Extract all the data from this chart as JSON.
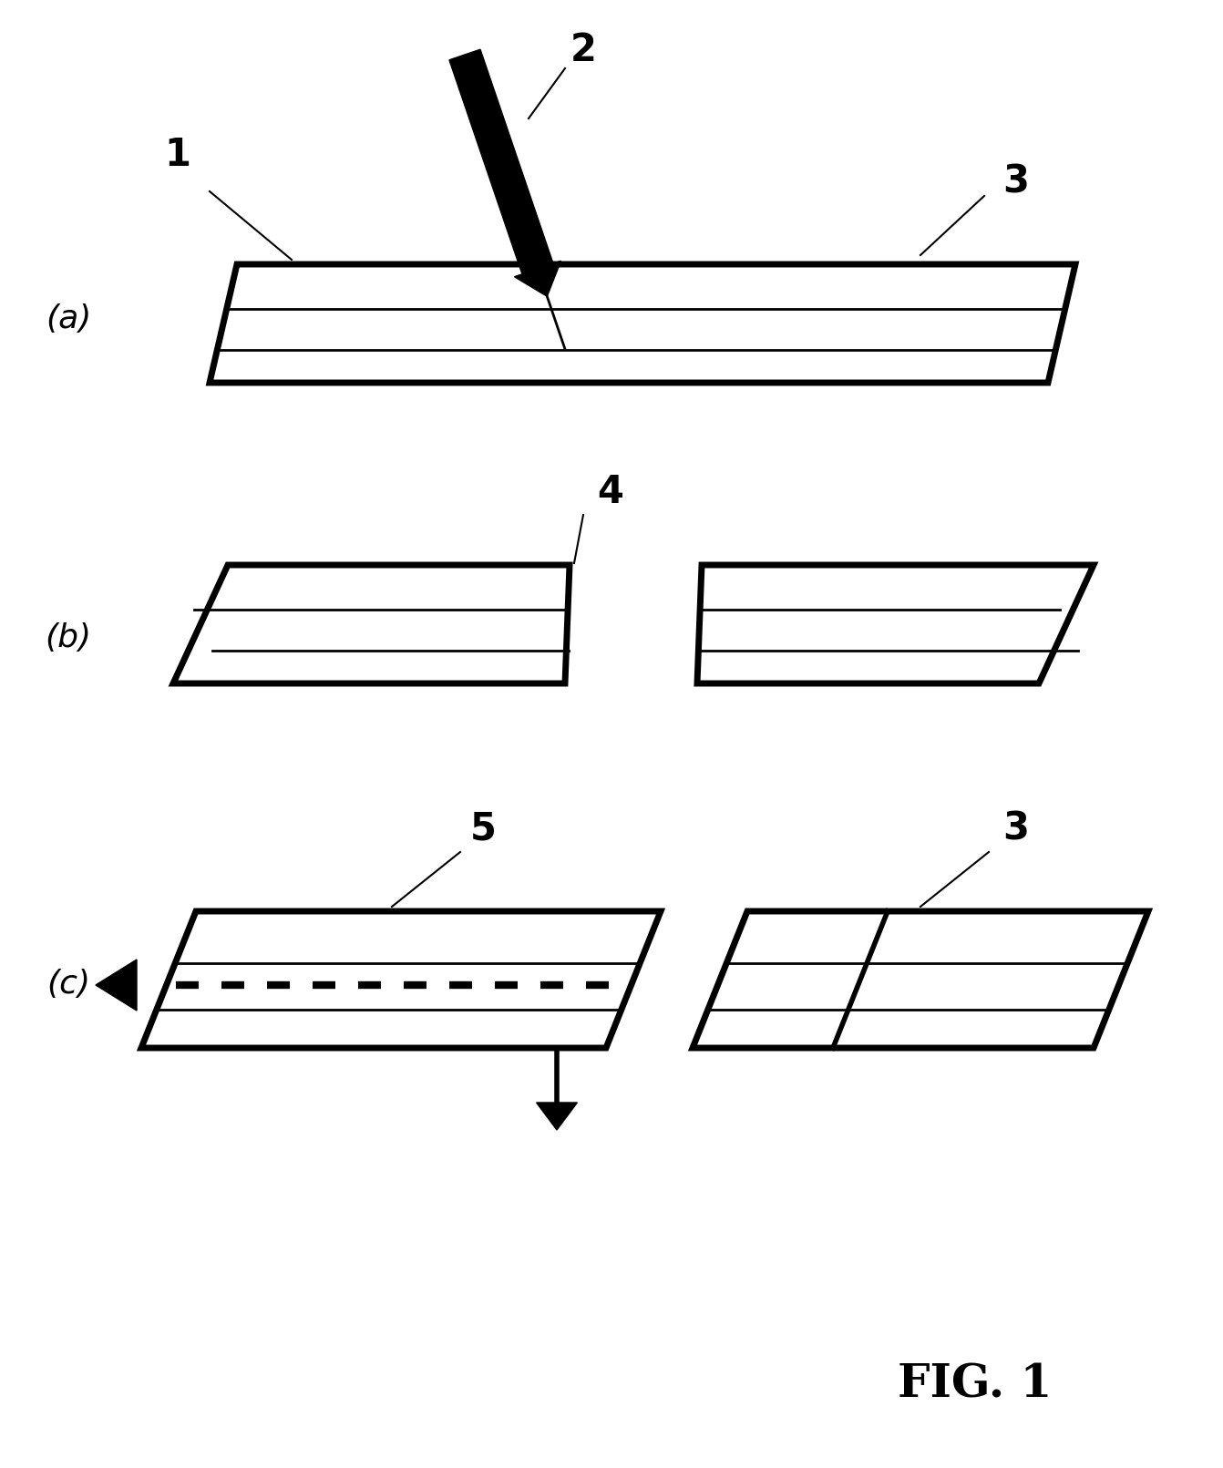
{
  "bg_color": "#ffffff",
  "line_color": "#000000",
  "label_a": "(a)",
  "label_b": "(b)",
  "label_c": "(c)",
  "fig_label": "FIG. 1",
  "num1": "1",
  "num2": "2",
  "num3_a": "3",
  "num4": "4",
  "num5": "5",
  "num3_c": "3",
  "lw_border": 5.0,
  "lw_inner": 2.0,
  "lw_thin": 1.5,
  "fontsize_label": 30,
  "fontsize_panel": 26
}
